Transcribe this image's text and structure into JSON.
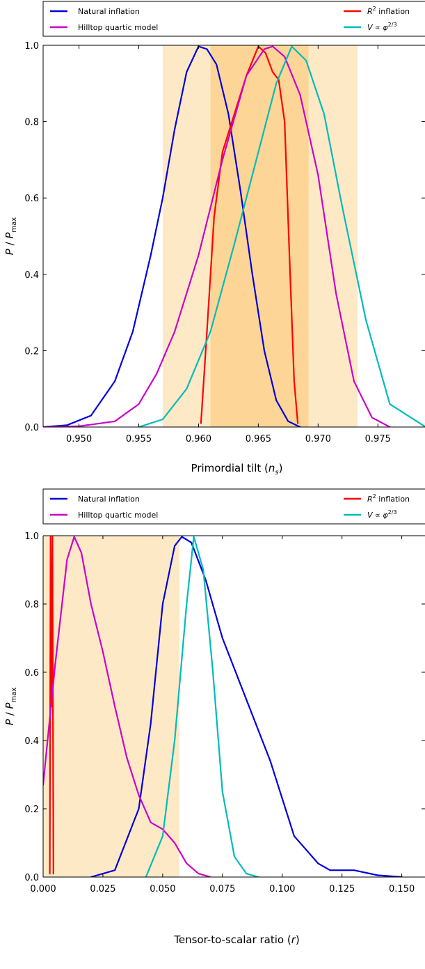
{
  "chart_data": [
    {
      "type": "line",
      "xlabel": "Primordial tilt (n_s)",
      "ylabel": "P/P_max",
      "xlim": [
        0.947,
        0.979
      ],
      "ylim": [
        0.0,
        1.0
      ],
      "xticks": [
        "0.950",
        "0.955",
        "0.960",
        "0.965",
        "0.970",
        "0.975"
      ],
      "yticks": [
        "0.0",
        "0.2",
        "0.4",
        "0.6",
        "0.8",
        "1.0"
      ],
      "grid": false,
      "legend_position": "top",
      "bands": [
        {
          "x0": 0.957,
          "x1": 0.9733,
          "color": "#fde9c6"
        },
        {
          "x0": 0.961,
          "x1": 0.9692,
          "color": "#fdd596"
        }
      ],
      "series": [
        {
          "name": "Natural inflation",
          "color": "#0000dd",
          "x": [
            0.947,
            0.949,
            0.951,
            0.953,
            0.9545,
            0.956,
            0.957,
            0.958,
            0.959,
            0.96,
            0.9607,
            0.9615,
            0.9625,
            0.9635,
            0.9645,
            0.9655,
            0.9665,
            0.9675,
            0.9685
          ],
          "y": [
            0.0,
            0.005,
            0.03,
            0.12,
            0.25,
            0.45,
            0.6,
            0.78,
            0.93,
            0.997,
            0.99,
            0.95,
            0.82,
            0.62,
            0.4,
            0.2,
            0.07,
            0.015,
            0.0
          ]
        },
        {
          "name": "R^2 inflation",
          "color": "#ff0000",
          "x": [
            0.9602,
            0.9607,
            0.9613,
            0.962,
            0.963,
            0.964,
            0.965,
            0.9656,
            0.9662,
            0.9667,
            0.9672,
            0.9676,
            0.968,
            0.9683
          ],
          "y": [
            0.01,
            0.25,
            0.55,
            0.72,
            0.82,
            0.92,
            0.997,
            0.98,
            0.93,
            0.91,
            0.8,
            0.45,
            0.12,
            0.01
          ]
        },
        {
          "name": "Hilltop quartic model",
          "color": "#cc00cc",
          "x": [
            0.947,
            0.95,
            0.953,
            0.955,
            0.9565,
            0.958,
            0.96,
            0.962,
            0.964,
            0.9655,
            0.9662,
            0.9672,
            0.9685,
            0.97,
            0.9715,
            0.973,
            0.9745,
            0.976
          ],
          "y": [
            0.0,
            0.002,
            0.015,
            0.06,
            0.14,
            0.25,
            0.45,
            0.7,
            0.92,
            0.99,
            0.997,
            0.97,
            0.87,
            0.66,
            0.35,
            0.12,
            0.025,
            0.0
          ]
        },
        {
          "name": "V ∝ φ^(2/3)",
          "color": "#00bbbb",
          "x": [
            0.955,
            0.957,
            0.959,
            0.961,
            0.963,
            0.965,
            0.9665,
            0.9678,
            0.969,
            0.9705,
            0.972,
            0.974,
            0.976,
            0.979
          ],
          "y": [
            0.0,
            0.02,
            0.1,
            0.25,
            0.48,
            0.72,
            0.9,
            0.997,
            0.96,
            0.82,
            0.58,
            0.28,
            0.06,
            0.0
          ]
        }
      ]
    },
    {
      "type": "line",
      "xlabel": "Tensor-to-scalar ratio (r)",
      "ylabel": "P/P_max",
      "xlim": [
        0.0,
        0.16
      ],
      "ylim": [
        0.0,
        1.0
      ],
      "xticks": [
        "0.000",
        "0.025",
        "0.050",
        "0.075",
        "0.100",
        "0.125",
        "0.150"
      ],
      "yticks": [
        "0.0",
        "0.2",
        "0.4",
        "0.6",
        "0.8",
        "1.0"
      ],
      "grid": false,
      "legend_position": "top",
      "bands": [
        {
          "x0": 0.0,
          "x1": 0.057,
          "color": "#fde9c6"
        }
      ],
      "series": [
        {
          "name": "Natural inflation",
          "color": "#0000dd",
          "x": [
            0.02,
            0.03,
            0.04,
            0.045,
            0.05,
            0.055,
            0.058,
            0.062,
            0.068,
            0.075,
            0.085,
            0.095,
            0.105,
            0.115,
            0.12,
            0.13,
            0.14,
            0.15
          ],
          "y": [
            0.0,
            0.02,
            0.2,
            0.45,
            0.8,
            0.97,
            0.997,
            0.98,
            0.87,
            0.7,
            0.52,
            0.34,
            0.12,
            0.04,
            0.02,
            0.02,
            0.005,
            0.0
          ]
        },
        {
          "name": "R^2 inflation",
          "color": "#ff0000",
          "x": [
            0.0028,
            0.0031,
            0.0035,
            0.0039,
            0.0043
          ],
          "y": [
            0.01,
            0.997,
            0.5,
            0.997,
            0.01
          ]
        },
        {
          "name": "Hilltop quartic model",
          "color": "#cc00cc",
          "x": [
            0.0,
            0.005,
            0.01,
            0.013,
            0.016,
            0.02,
            0.025,
            0.03,
            0.035,
            0.04,
            0.045,
            0.05,
            0.055,
            0.06,
            0.065,
            0.07
          ],
          "y": [
            0.27,
            0.62,
            0.93,
            0.997,
            0.95,
            0.8,
            0.66,
            0.5,
            0.35,
            0.24,
            0.16,
            0.14,
            0.1,
            0.04,
            0.01,
            0.0
          ]
        },
        {
          "name": "V ∝ φ^(2/3)",
          "color": "#00bbbb",
          "x": [
            0.043,
            0.05,
            0.055,
            0.06,
            0.063,
            0.067,
            0.071,
            0.075,
            0.08,
            0.085,
            0.09
          ],
          "y": [
            0.0,
            0.12,
            0.4,
            0.8,
            0.997,
            0.9,
            0.6,
            0.25,
            0.06,
            0.01,
            0.0
          ]
        }
      ]
    }
  ]
}
